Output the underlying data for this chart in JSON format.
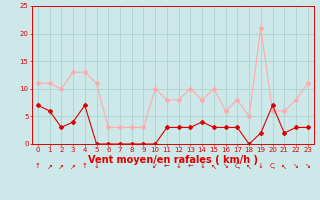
{
  "x": [
    0,
    1,
    2,
    3,
    4,
    5,
    6,
    7,
    8,
    9,
    10,
    11,
    12,
    13,
    14,
    15,
    16,
    17,
    18,
    19,
    20,
    21,
    22,
    23
  ],
  "wind_avg": [
    7,
    6,
    3,
    4,
    7,
    0,
    0,
    0,
    0,
    0,
    0,
    3,
    3,
    3,
    4,
    3,
    3,
    3,
    0,
    2,
    7,
    2,
    3,
    3
  ],
  "wind_gust": [
    11,
    11,
    10,
    13,
    13,
    11,
    3,
    3,
    3,
    3,
    10,
    8,
    8,
    10,
    8,
    10,
    6,
    8,
    5,
    21,
    6,
    6,
    8,
    11
  ],
  "wind_dir": [
    "↑",
    "↗",
    "↗",
    "↗",
    "↑",
    "↓",
    " ",
    " ",
    " ",
    " ",
    "↙",
    "←",
    "↓",
    "←",
    "↓",
    "↖",
    "↘",
    "ↅ",
    "↖",
    "↓",
    "ↅ",
    "↖",
    "↘",
    "↘"
  ],
  "ylim": [
    0,
    25
  ],
  "yticks": [
    0,
    5,
    10,
    15,
    20,
    25
  ],
  "xticks": [
    0,
    1,
    2,
    3,
    4,
    5,
    6,
    7,
    8,
    9,
    10,
    11,
    12,
    13,
    14,
    15,
    16,
    17,
    18,
    19,
    20,
    21,
    22,
    23
  ],
  "xlabel": "Vent moyen/en rafales ( km/h )",
  "bg_color": "#cce8e8",
  "grid_color": "#aacccc",
  "avg_color": "#dd0000",
  "gust_color": "#ffaaaa",
  "marker": "D",
  "marker_size": 2.0,
  "line_width": 0.8,
  "tick_label_size": 5.0,
  "xlabel_size": 7.0,
  "dir_fontsize": 5.0
}
